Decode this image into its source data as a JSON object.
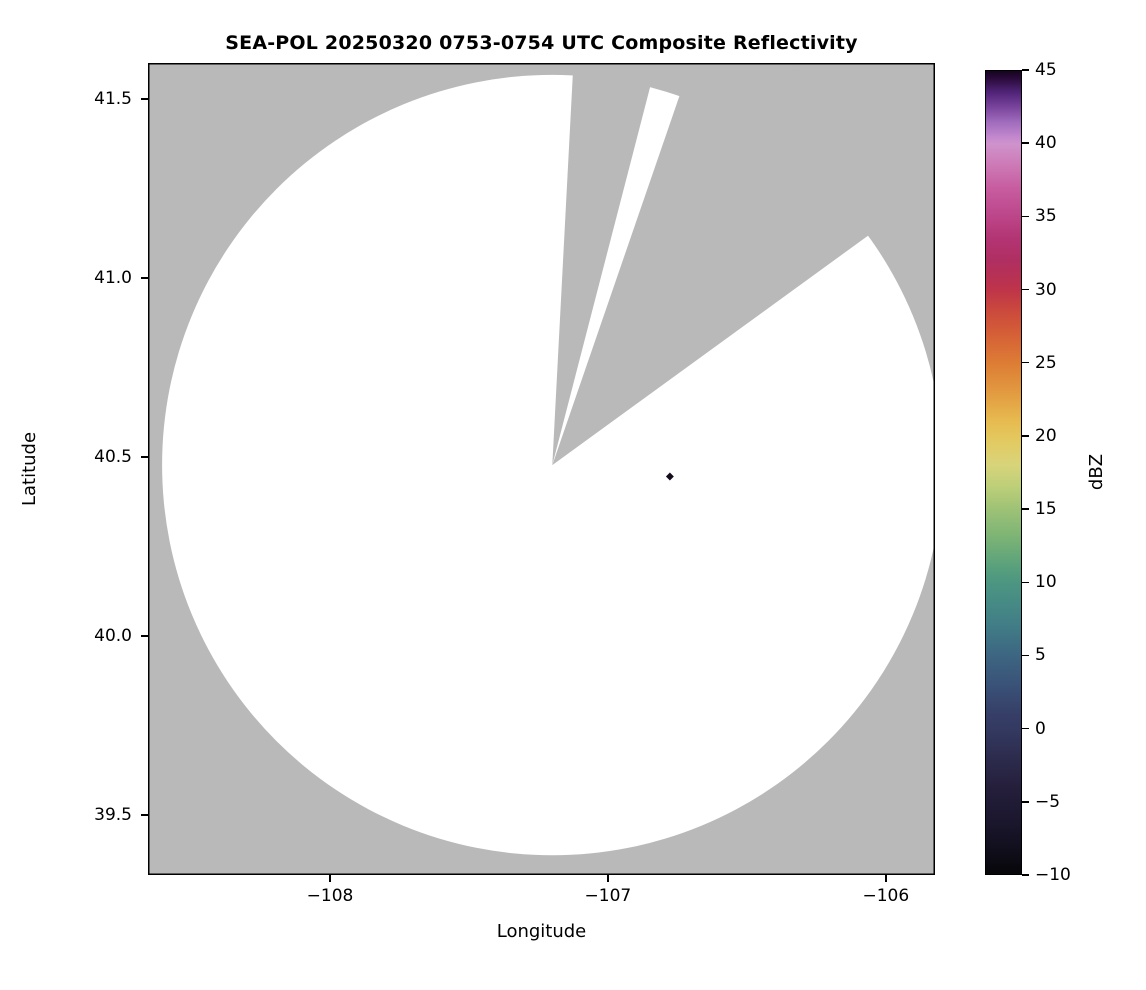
{
  "chart_data": {
    "type": "heatmap",
    "title": "SEA-POL 20250320 0753-0754 UTC Composite Reflectivity",
    "xlabel": "Longitude",
    "ylabel": "Latitude",
    "xlim": [
      -108.655,
      -105.823
    ],
    "ylim": [
      39.332,
      41.6
    ],
    "grid": false,
    "xticks": [
      {
        "value": -108,
        "label": "−108"
      },
      {
        "value": -107,
        "label": "−107"
      },
      {
        "value": -106,
        "label": "−106"
      }
    ],
    "yticks": [
      {
        "value": 41.5,
        "label": "41.5"
      },
      {
        "value": 41.0,
        "label": "41.0"
      },
      {
        "value": 40.5,
        "label": "40.5"
      },
      {
        "value": 40.0,
        "label": "40.0"
      },
      {
        "value": 39.5,
        "label": "39.5"
      }
    ],
    "radar": {
      "center_lon": -107.2,
      "center_lat": 40.477,
      "coverage_radius_deg_lat": 1.09,
      "blocked_sectors_azimuth_deg": [
        [
          3,
          14.5
        ],
        [
          19,
          54
        ]
      ],
      "outside_color": "#b9b9b9",
      "coverage_color": "#ffffff"
    },
    "echoes": [
      {
        "lon": -106.777,
        "lat": 40.445,
        "color": "#140c1c"
      }
    ],
    "colorbar": {
      "label": "dBZ",
      "min": -10,
      "max": 45,
      "position": "right",
      "ticks": [
        {
          "value": 45,
          "label": "45"
        },
        {
          "value": 40,
          "label": "40"
        },
        {
          "value": 35,
          "label": "35"
        },
        {
          "value": 30,
          "label": "30"
        },
        {
          "value": 25,
          "label": "25"
        },
        {
          "value": 20,
          "label": "20"
        },
        {
          "value": 15,
          "label": "15"
        },
        {
          "value": 10,
          "label": "10"
        },
        {
          "value": 5,
          "label": "5"
        },
        {
          "value": 0,
          "label": "0"
        },
        {
          "value": -5,
          "label": "−5"
        },
        {
          "value": -10,
          "label": "−10"
        }
      ],
      "gradient_stops": [
        {
          "value": 45,
          "color": "#16041f"
        },
        {
          "value": 44.5,
          "color": "#2a0b3a"
        },
        {
          "value": 43.5,
          "color": "#52257a"
        },
        {
          "value": 42.5,
          "color": "#7a459d"
        },
        {
          "value": 41.5,
          "color": "#a06cbd"
        },
        {
          "value": 40.5,
          "color": "#c287cd"
        },
        {
          "value": 40,
          "color": "#cf93cc"
        },
        {
          "value": 38.5,
          "color": "#cd79b6"
        },
        {
          "value": 37,
          "color": "#c75da0"
        },
        {
          "value": 35,
          "color": "#bc4589"
        },
        {
          "value": 33.5,
          "color": "#b23473"
        },
        {
          "value": 32,
          "color": "#b02f62"
        },
        {
          "value": 30.5,
          "color": "#ba324f"
        },
        {
          "value": 30,
          "color": "#bf3449"
        },
        {
          "value": 28.5,
          "color": "#cb4a3c"
        },
        {
          "value": 27,
          "color": "#d55f37"
        },
        {
          "value": 25,
          "color": "#dd7c35"
        },
        {
          "value": 23,
          "color": "#e29a40"
        },
        {
          "value": 21,
          "color": "#e7bb50"
        },
        {
          "value": 19.5,
          "color": "#e2cb63"
        },
        {
          "value": 18,
          "color": "#d8d47b"
        },
        {
          "value": 16.5,
          "color": "#bccf78"
        },
        {
          "value": 15,
          "color": "#9ec276"
        },
        {
          "value": 13,
          "color": "#7bb375"
        },
        {
          "value": 11,
          "color": "#58a07c"
        },
        {
          "value": 10,
          "color": "#4d9681"
        },
        {
          "value": 8.5,
          "color": "#468a85"
        },
        {
          "value": 7,
          "color": "#417d86"
        },
        {
          "value": 5,
          "color": "#3d6682"
        },
        {
          "value": 3,
          "color": "#3a5378"
        },
        {
          "value": 1,
          "color": "#363f68"
        },
        {
          "value": 0,
          "color": "#343a62"
        },
        {
          "value": -2,
          "color": "#2d2c4e"
        },
        {
          "value": -4,
          "color": "#251f3c"
        },
        {
          "value": -6,
          "color": "#1d1830"
        },
        {
          "value": -8,
          "color": "#131020"
        },
        {
          "value": -10,
          "color": "#070609"
        }
      ]
    }
  }
}
